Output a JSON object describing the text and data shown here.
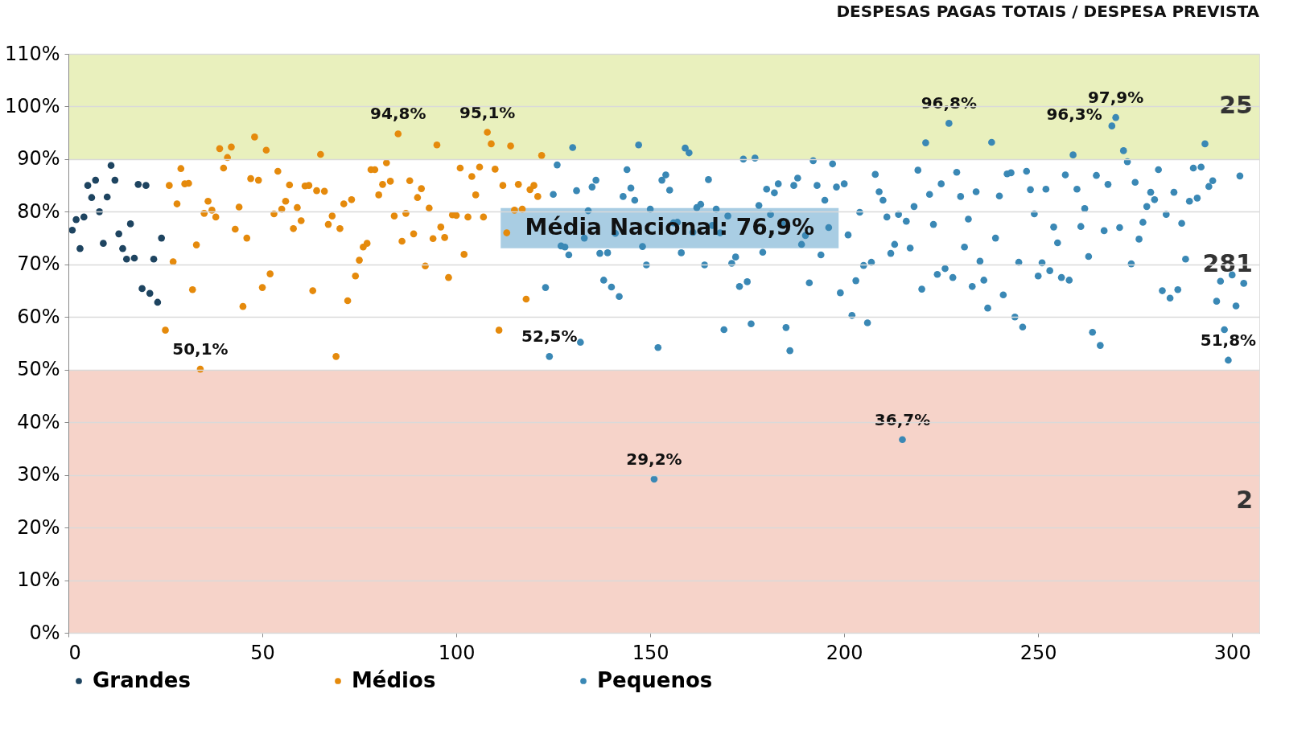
{
  "chart_data": {
    "type": "scatter",
    "title": "DESPESAS PAGAS TOTAIS / DESPESA PREVISTA",
    "xlim": [
      0,
      307
    ],
    "xticks": [
      0,
      50,
      100,
      150,
      200,
      250,
      300
    ],
    "ylim": [
      0,
      110
    ],
    "yticks": [
      {
        "value": 0,
        "label": "0%"
      },
      {
        "value": 10,
        "label": "10%"
      },
      {
        "value": 20,
        "label": "20%"
      },
      {
        "value": 30,
        "label": "30%"
      },
      {
        "value": 40,
        "label": "40%"
      },
      {
        "value": 50,
        "label": "50%"
      },
      {
        "value": 60,
        "label": "60%"
      },
      {
        "value": 70,
        "label": "70%"
      },
      {
        "value": 80,
        "label": "80%"
      },
      {
        "value": 90,
        "label": "90%"
      },
      {
        "value": 100,
        "label": "100%"
      },
      {
        "value": 110,
        "label": "110%"
      }
    ],
    "grid": "y",
    "legend": "bottom",
    "marker": "circle",
    "bands": [
      {
        "axis": "y",
        "from": 0,
        "to": 50,
        "label": "2",
        "color": "#f6d3c9"
      },
      {
        "axis": "y",
        "from": 50,
        "to": 90,
        "label": "281",
        "color": "#ffffff"
      },
      {
        "axis": "y",
        "from": 90,
        "to": 110,
        "label": "25",
        "color": "#e9f0bd"
      }
    ],
    "annotations": [
      {
        "text": "Média Nacional: 76,9%",
        "x": 155,
        "y": 76.9
      },
      {
        "text": "50,1%",
        "x": 34,
        "y": 50.1
      },
      {
        "text": "94,8%",
        "x": 85,
        "y": 94.8
      },
      {
        "text": "95,1%",
        "x": 108,
        "y": 95.1
      },
      {
        "text": "52,5%",
        "x": 124,
        "y": 52.5
      },
      {
        "text": "29,2%",
        "x": 151,
        "y": 29.2
      },
      {
        "text": "36,7%",
        "x": 215,
        "y": 36.7
      },
      {
        "text": "96,8%",
        "x": 227,
        "y": 96.8
      },
      {
        "text": "96,3%",
        "x": 269,
        "y": 96.3
      },
      {
        "text": "97,9%",
        "x": 270,
        "y": 97.9
      },
      {
        "text": "51,8%",
        "x": 299,
        "y": 51.8
      }
    ],
    "series": [
      {
        "name": "Grandes",
        "color": "#1e4460",
        "x": [
          1,
          2,
          3,
          4,
          5,
          6,
          7,
          8,
          9,
          10,
          11,
          12,
          13,
          14,
          15,
          16,
          17,
          18,
          19,
          20,
          21,
          22,
          23,
          24
        ],
        "values": [
          76.5,
          78.5,
          73,
          79,
          85,
          82.7,
          86,
          80,
          74,
          82.8,
          88.8,
          86,
          75.8,
          73,
          71,
          77.7,
          71.2,
          85.2,
          65.4,
          85,
          64.5,
          71,
          62.8,
          75
        ]
      },
      {
        "name": "Médios",
        "color": "#e58a0c",
        "x": [
          25,
          26,
          27,
          28,
          29,
          30,
          31,
          32,
          33,
          34,
          35,
          36,
          37,
          38,
          39,
          40,
          41,
          42,
          43,
          44,
          45,
          46,
          47,
          48,
          49,
          50,
          51,
          52,
          53,
          54,
          55,
          56,
          57,
          58,
          59,
          60,
          61,
          62,
          63,
          64,
          65,
          66,
          67,
          68,
          69,
          70,
          71,
          72,
          73,
          74,
          75,
          76,
          77,
          78,
          79,
          80,
          81,
          82,
          83,
          84,
          85,
          86,
          87,
          88,
          89,
          90,
          91,
          92,
          93,
          94,
          95,
          96,
          97,
          98,
          99,
          100,
          101,
          102,
          103,
          104,
          105,
          106,
          107,
          108,
          109,
          110,
          111,
          112,
          113,
          114,
          115,
          116,
          117,
          118,
          119,
          120,
          121,
          122
        ],
        "values": [
          57.5,
          85,
          70.5,
          81.5,
          88.2,
          85.3,
          85.4,
          65.2,
          73.7,
          50.1,
          79.7,
          82,
          80.3,
          79,
          92,
          88.3,
          90.3,
          92.3,
          76.7,
          80.9,
          62,
          75,
          86.3,
          94.2,
          86,
          65.6,
          91.7,
          68.2,
          79.6,
          87.7,
          80.5,
          82,
          85.1,
          76.8,
          80.8,
          78.3,
          84.9,
          85,
          65,
          84,
          90.9,
          83.9,
          77.6,
          79.2,
          52.5,
          76.8,
          81.5,
          63.1,
          82.3,
          67.8,
          70.8,
          73.3,
          74,
          88,
          88,
          83.2,
          85.2,
          89.3,
          85.8,
          79.2,
          94.8,
          74.4,
          79.7,
          85.9,
          75.8,
          82.7,
          84.4,
          69.7,
          80.7,
          74.9,
          92.7,
          77.1,
          75.1,
          67.5,
          79.4,
          79.3,
          88.3,
          71.9,
          79,
          86.7,
          83.2,
          88.5,
          79,
          95.1,
          92.9,
          88.1,
          57.5,
          85,
          76,
          92.5,
          80.3,
          85.2,
          80.5,
          63.4,
          84.2,
          85,
          82.9,
          90.7
        ]
      },
      {
        "name": "Pequenos",
        "color": "#3a88b5",
        "x": [
          123,
          124,
          125,
          126,
          127,
          128,
          129,
          130,
          131,
          132,
          133,
          134,
          135,
          136,
          137,
          138,
          139,
          140,
          141,
          142,
          143,
          144,
          145,
          146,
          147,
          148,
          149,
          150,
          151,
          152,
          153,
          154,
          155,
          156,
          157,
          158,
          159,
          160,
          161,
          162,
          163,
          164,
          165,
          166,
          167,
          168,
          169,
          170,
          171,
          172,
          173,
          174,
          175,
          176,
          177,
          178,
          179,
          180,
          181,
          182,
          183,
          184,
          185,
          186,
          187,
          188,
          189,
          190,
          191,
          192,
          193,
          194,
          195,
          196,
          197,
          198,
          199,
          200,
          201,
          202,
          203,
          204,
          205,
          206,
          207,
          208,
          209,
          210,
          211,
          212,
          213,
          214,
          215,
          216,
          217,
          218,
          219,
          220,
          221,
          222,
          223,
          224,
          225,
          226,
          227,
          228,
          229,
          230,
          231,
          232,
          233,
          234,
          235,
          236,
          237,
          238,
          239,
          240,
          241,
          242,
          243,
          244,
          245,
          246,
          247,
          248,
          249,
          250,
          251,
          252,
          253,
          254,
          255,
          256,
          257,
          258,
          259,
          260,
          261,
          262,
          263,
          264,
          265,
          266,
          267,
          268,
          269,
          270,
          271,
          272,
          273,
          274,
          275,
          276,
          277,
          278,
          279,
          280,
          281,
          282,
          283,
          284,
          285,
          286,
          287,
          288,
          289,
          290,
          291,
          292,
          293,
          294,
          295,
          296,
          297,
          298,
          299,
          300,
          301,
          302,
          303
        ],
        "values": [
          65.6,
          52.5,
          83.3,
          88.9,
          73.5,
          73.3,
          71.8,
          92.2,
          84,
          55.2,
          75,
          80.2,
          84.7,
          86,
          72.1,
          67,
          72.2,
          65.7,
          75.9,
          63.9,
          82.9,
          88,
          84.5,
          82.2,
          92.7,
          73.4,
          69.9,
          80.5,
          29.2,
          54.2,
          86,
          87,
          84.1,
          77.9,
          78,
          72.2,
          92.1,
          91.2,
          76.1,
          80.8,
          81.4,
          69.9,
          86.1,
          77.4,
          80.5,
          76,
          57.6,
          79.2,
          70.2,
          71.4,
          65.8,
          90,
          66.7,
          58.7,
          90.2,
          81.2,
          72.3,
          84.3,
          79.5,
          83.6,
          85.3,
          77.8,
          58,
          53.6,
          85,
          86.4,
          73.8,
          75.5,
          66.5,
          89.7,
          85,
          71.8,
          82.2,
          77,
          89.1,
          84.7,
          64.6,
          85.3,
          75.6,
          60.3,
          66.9,
          79.9,
          69.8,
          58.9,
          70.4,
          87.1,
          83.8,
          82.2,
          79,
          72.1,
          73.8,
          79.5,
          36.7,
          78.2,
          73.1,
          81,
          87.9,
          65.3,
          93.1,
          83.3,
          77.6,
          68.1,
          85.3,
          69.2,
          96.8,
          67.5,
          87.5,
          82.9,
          73.3,
          78.6,
          65.8,
          83.8,
          70.6,
          67,
          61.7,
          93.2,
          75,
          83,
          64.2,
          87.2,
          87.4,
          60,
          70.4,
          58.1,
          87.7,
          84.2,
          79.6,
          67.8,
          70.3,
          84.3,
          68.8,
          77.1,
          74.1,
          67.5,
          87,
          67,
          90.8,
          84.3,
          77.2,
          80.6,
          71.5,
          57.1,
          86.9,
          54.6,
          76.4,
          85.2,
          96.3,
          97.9,
          77,
          91.6,
          89.5,
          70.1,
          85.6,
          74.8,
          78,
          81,
          83.7,
          82.3,
          88,
          65,
          79.5,
          63.6,
          83.7,
          65.2,
          77.8,
          71,
          82,
          88.3,
          82.6,
          88.5,
          92.9,
          84.8,
          85.9,
          63,
          66.8,
          57.6,
          51.8,
          68,
          62.1,
          86.8,
          66.4
        ]
      }
    ]
  }
}
